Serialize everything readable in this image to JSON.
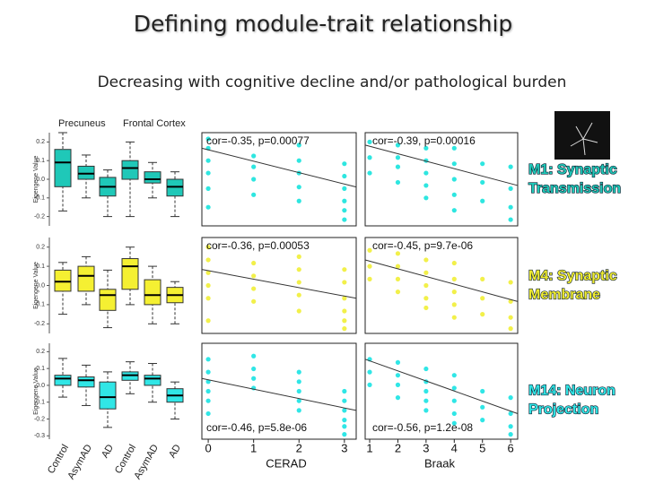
{
  "slide": {
    "title": "Defining module-trait relationship",
    "subtitle": "Decreasing with cognitive decline and/or pathological burden",
    "modules": [
      {
        "lines": [
          "M1: Synaptic",
          "Transmission"
        ],
        "color": "#1fc8b8"
      },
      {
        "lines": [
          "M4: Synaptic",
          "Membrane"
        ],
        "color": "#f0ec30"
      },
      {
        "lines": [
          "M14: Neuron",
          "Projection"
        ],
        "color": "#30e6e6"
      }
    ]
  },
  "chart_data": [
    {
      "type": "box",
      "groups": [
        "Precuneus",
        "Frontal Cortex"
      ],
      "y_label": "Eigengene Value",
      "color": "#1fc8b8",
      "ylim": [
        -0.25,
        0.25
      ],
      "yticks": [
        0.2,
        0.1,
        {
          "value": 0,
          "label": "0.0"
        },
        -0.1,
        -0.2
      ],
      "values": [
        [
          -0.17,
          -0.04,
          0.09,
          0.16,
          0.25
        ],
        [
          -0.1,
          0.0,
          0.03,
          0.07,
          0.13
        ],
        [
          -0.2,
          -0.09,
          -0.04,
          0.01,
          0.05
        ],
        [
          -0.2,
          0.0,
          0.06,
          0.1,
          0.2
        ],
        [
          -0.1,
          -0.02,
          0.0,
          0.04,
          0.09
        ],
        [
          -0.2,
          -0.09,
          -0.04,
          0.0,
          0.04
        ]
      ]
    },
    {
      "type": "scatter",
      "annotation": "cor=-0.35, p=0.00077",
      "color": "#2ee6e0",
      "xlim": [
        -0.14,
        3.26
      ],
      "ylim": [
        -0.3,
        0.3
      ],
      "x": [
        0,
        0,
        0,
        0,
        0,
        0,
        1,
        1,
        1,
        1,
        2,
        2,
        2,
        2,
        2,
        3,
        3,
        3,
        3,
        3,
        3
      ],
      "y": [
        0.26,
        0.2,
        0.12,
        0.04,
        -0.06,
        -0.18,
        0.15,
        0.08,
        0.0,
        -0.1,
        0.22,
        0.12,
        0.04,
        -0.05,
        -0.14,
        0.1,
        0.02,
        -0.06,
        -0.14,
        -0.2,
        -0.26
      ],
      "trend": {
        "x": [
          -0.14,
          3.26
        ],
        "y": [
          0.2,
          -0.05
        ]
      }
    },
    {
      "type": "scatter",
      "annotation": "cor=-0.39, p=0.00016",
      "color": "#2ee6e0",
      "xlim": [
        0.84,
        6.25
      ],
      "ylim": [
        -0.3,
        0.3
      ],
      "x": [
        1,
        1,
        1,
        2,
        2,
        2,
        2,
        3,
        3,
        3,
        3,
        3,
        4,
        4,
        4,
        4,
        4,
        5,
        5,
        5,
        6,
        6,
        6,
        6
      ],
      "y": [
        0.24,
        0.14,
        0.04,
        0.22,
        0.14,
        0.08,
        -0.02,
        0.2,
        0.12,
        0.04,
        -0.04,
        -0.12,
        0.2,
        0.1,
        0.0,
        -0.1,
        -0.2,
        0.1,
        -0.02,
        -0.14,
        0.08,
        -0.06,
        -0.18,
        -0.26
      ],
      "trend": {
        "x": [
          0.84,
          6.25
        ],
        "y": [
          0.22,
          -0.04
        ]
      }
    },
    {
      "type": "box",
      "y_label": "Eigengene Value",
      "color": "#f5f032",
      "ylim": [
        -0.25,
        0.25
      ],
      "yticks": [
        0.2,
        0.1,
        {
          "value": 0,
          "label": "0.0"
        },
        -0.1,
        -0.2
      ],
      "values": [
        [
          -0.15,
          -0.03,
          0.02,
          0.08,
          0.12
        ],
        [
          -0.1,
          -0.03,
          0.05,
          0.1,
          0.15
        ],
        [
          -0.22,
          -0.13,
          -0.05,
          -0.02,
          0.08
        ],
        [
          -0.1,
          -0.02,
          0.1,
          0.14,
          0.2
        ],
        [
          -0.2,
          -0.1,
          -0.05,
          0.03,
          0.1
        ],
        [
          -0.2,
          -0.09,
          -0.05,
          -0.01,
          0.02
        ]
      ]
    },
    {
      "type": "scatter",
      "annotation": "cor=-0.36, p=0.00053",
      "color": "#f2f04a",
      "xlim": [
        -0.14,
        3.26
      ],
      "ylim": [
        -0.3,
        0.3
      ],
      "x": [
        0,
        0,
        0,
        0,
        0,
        0,
        1,
        1,
        1,
        1,
        2,
        2,
        2,
        2,
        2,
        3,
        3,
        3,
        3,
        3,
        3
      ],
      "y": [
        0.24,
        0.16,
        0.08,
        0.0,
        -0.08,
        -0.22,
        0.14,
        0.06,
        -0.02,
        -0.1,
        0.18,
        0.1,
        0.02,
        -0.06,
        -0.16,
        0.1,
        0.02,
        -0.08,
        -0.16,
        -0.22,
        -0.27
      ],
      "trend": {
        "x": [
          -0.14,
          3.26
        ],
        "y": [
          0.1,
          -0.08
        ]
      }
    },
    {
      "type": "scatter",
      "annotation": "cor=-0.45, p=9.7e-06",
      "color": "#f2f04a",
      "xlim": [
        0.84,
        6.25
      ],
      "ylim": [
        -0.3,
        0.3
      ],
      "x": [
        1,
        1,
        1,
        2,
        2,
        2,
        2,
        3,
        3,
        3,
        3,
        3,
        4,
        4,
        4,
        4,
        4,
        5,
        5,
        5,
        6,
        6,
        6,
        6
      ],
      "y": [
        0.22,
        0.12,
        0.04,
        0.2,
        0.12,
        0.04,
        -0.04,
        0.16,
        0.08,
        0.0,
        -0.08,
        -0.14,
        0.14,
        0.04,
        -0.04,
        -0.12,
        -0.2,
        0.04,
        -0.08,
        -0.18,
        0.02,
        -0.1,
        -0.2,
        -0.27
      ],
      "trend": {
        "x": [
          0.84,
          6.25
        ],
        "y": [
          0.16,
          -0.1
        ]
      }
    },
    {
      "type": "box",
      "categories": [
        "Control",
        "AsymAD",
        "AD",
        "Control",
        "AsymAD",
        "AD"
      ],
      "y_label": "Eigengene Value",
      "color": "#30e6e6",
      "ylim": [
        -0.32,
        0.25
      ],
      "yticks": [
        0.2,
        0.1,
        {
          "value": 0,
          "label": "0.0"
        },
        -0.1,
        -0.2,
        -0.3
      ],
      "values": [
        [
          -0.07,
          0.0,
          0.04,
          0.06,
          0.16
        ],
        [
          -0.12,
          -0.01,
          0.03,
          0.05,
          0.12
        ],
        [
          -0.25,
          -0.14,
          -0.07,
          0.02,
          0.08
        ],
        [
          -0.05,
          0.03,
          0.06,
          0.08,
          0.14
        ],
        [
          -0.1,
          0.0,
          0.04,
          0.06,
          0.13
        ],
        [
          -0.2,
          -0.1,
          -0.06,
          -0.02,
          0.02
        ]
      ]
    },
    {
      "type": "scatter",
      "annotation": "cor=-0.46, p=5.8e-06",
      "color": "#30e6e6",
      "xlim": [
        -0.14,
        3.26
      ],
      "ylim": [
        -0.3,
        0.3
      ],
      "x_label": "CERAD",
      "xticks": [
        0,
        1,
        2,
        3
      ],
      "x": [
        0,
        0,
        0,
        0,
        0,
        0,
        1,
        1,
        1,
        1,
        2,
        2,
        2,
        2,
        2,
        3,
        3,
        3,
        3,
        3,
        3
      ],
      "y": [
        0.2,
        0.12,
        0.06,
        0.0,
        -0.06,
        -0.14,
        0.22,
        0.14,
        0.08,
        0.02,
        0.12,
        0.06,
        0.0,
        -0.06,
        -0.12,
        0.0,
        -0.06,
        -0.12,
        -0.18,
        -0.22,
        -0.27
      ],
      "trend": {
        "x": [
          -0.14,
          3.26
        ],
        "y": [
          0.08,
          -0.12
        ]
      }
    },
    {
      "type": "scatter",
      "annotation": "cor=-0.56, p=1.2e-08",
      "color": "#30e6e6",
      "xlim": [
        0.84,
        6.25
      ],
      "ylim": [
        -0.3,
        0.3
      ],
      "x_label": "Braak",
      "xticks": [
        1,
        2,
        3,
        4,
        5,
        6
      ],
      "x": [
        1,
        1,
        1,
        2,
        2,
        2,
        2,
        3,
        3,
        3,
        3,
        3,
        4,
        4,
        4,
        4,
        4,
        5,
        5,
        5,
        6,
        6,
        6,
        6
      ],
      "y": [
        0.2,
        0.12,
        0.04,
        0.18,
        0.1,
        0.04,
        -0.04,
        0.14,
        0.06,
        0.0,
        -0.06,
        -0.12,
        0.1,
        0.02,
        -0.06,
        -0.14,
        -0.2,
        0.0,
        -0.1,
        -0.18,
        -0.04,
        -0.14,
        -0.22,
        -0.27
      ],
      "trend": {
        "x": [
          0.84,
          6.25
        ],
        "y": [
          0.2,
          -0.14
        ]
      }
    }
  ]
}
